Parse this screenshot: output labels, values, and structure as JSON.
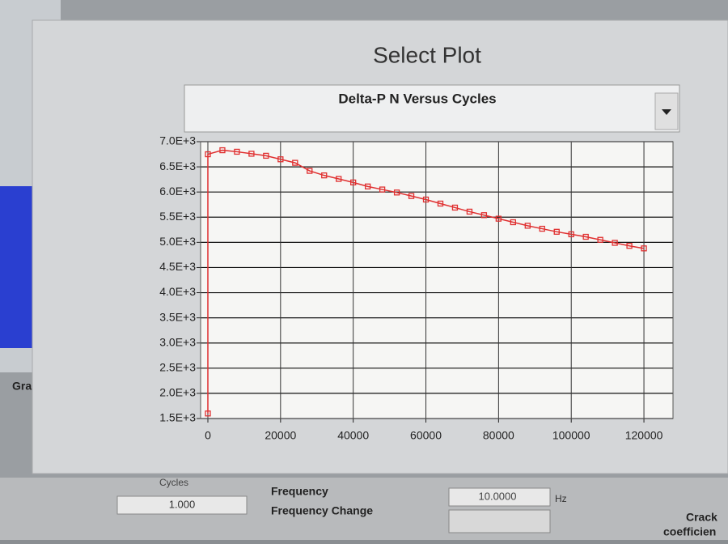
{
  "title": "Select Plot",
  "dropdown": "Delta-P N Versus Cycles",
  "chart_data": {
    "type": "line",
    "x": [
      0,
      0,
      4000,
      8000,
      12000,
      16000,
      20000,
      24000,
      28000,
      32000,
      36000,
      40000,
      44000,
      48000,
      52000,
      56000,
      60000,
      64000,
      68000,
      72000,
      76000,
      80000,
      84000,
      88000,
      92000,
      96000,
      100000,
      104000,
      108000,
      112000,
      116000,
      120000
    ],
    "values": [
      1600,
      6750,
      6830,
      6800,
      6760,
      6720,
      6650,
      6580,
      6420,
      6330,
      6260,
      6190,
      6110,
      6050,
      5990,
      5920,
      5850,
      5770,
      5690,
      5610,
      5540,
      5470,
      5400,
      5330,
      5270,
      5210,
      5160,
      5110,
      5050,
      4990,
      4930,
      4880
    ],
    "color": "#e03030",
    "xlim": [
      -2000,
      128000
    ],
    "ylim": [
      1500,
      7000
    ],
    "xticks": [
      0,
      20000,
      40000,
      60000,
      80000,
      100000,
      120000
    ],
    "yticks": [
      {
        "value": 1500,
        "label": "1.5E+3"
      },
      {
        "value": 2000,
        "label": "2.0E+3"
      },
      {
        "value": 2500,
        "label": "2.5E+3"
      },
      {
        "value": 3000,
        "label": "3.0E+3"
      },
      {
        "value": 3500,
        "label": "3.5E+3"
      },
      {
        "value": 4000,
        "label": "4.0E+3"
      },
      {
        "value": 4500,
        "label": "4.5E+3"
      },
      {
        "value": 5000,
        "label": "5.0E+3"
      },
      {
        "value": 5500,
        "label": "5.5E+3"
      },
      {
        "value": 6000,
        "label": "6.0E+3"
      },
      {
        "value": 6500,
        "label": "6.5E+3"
      },
      {
        "value": 7000,
        "label": "7.0E+3"
      }
    ],
    "grid": true
  },
  "controls": {
    "graph": "Graph",
    "cycles": "Cycles",
    "cycles_value": "1.000",
    "frequency": "Frequency",
    "frequency_change": "Frequency Change",
    "frequency_value": "10.0000",
    "unit": "Hz",
    "crack": "Crack",
    "coefficient": "coefficien"
  }
}
